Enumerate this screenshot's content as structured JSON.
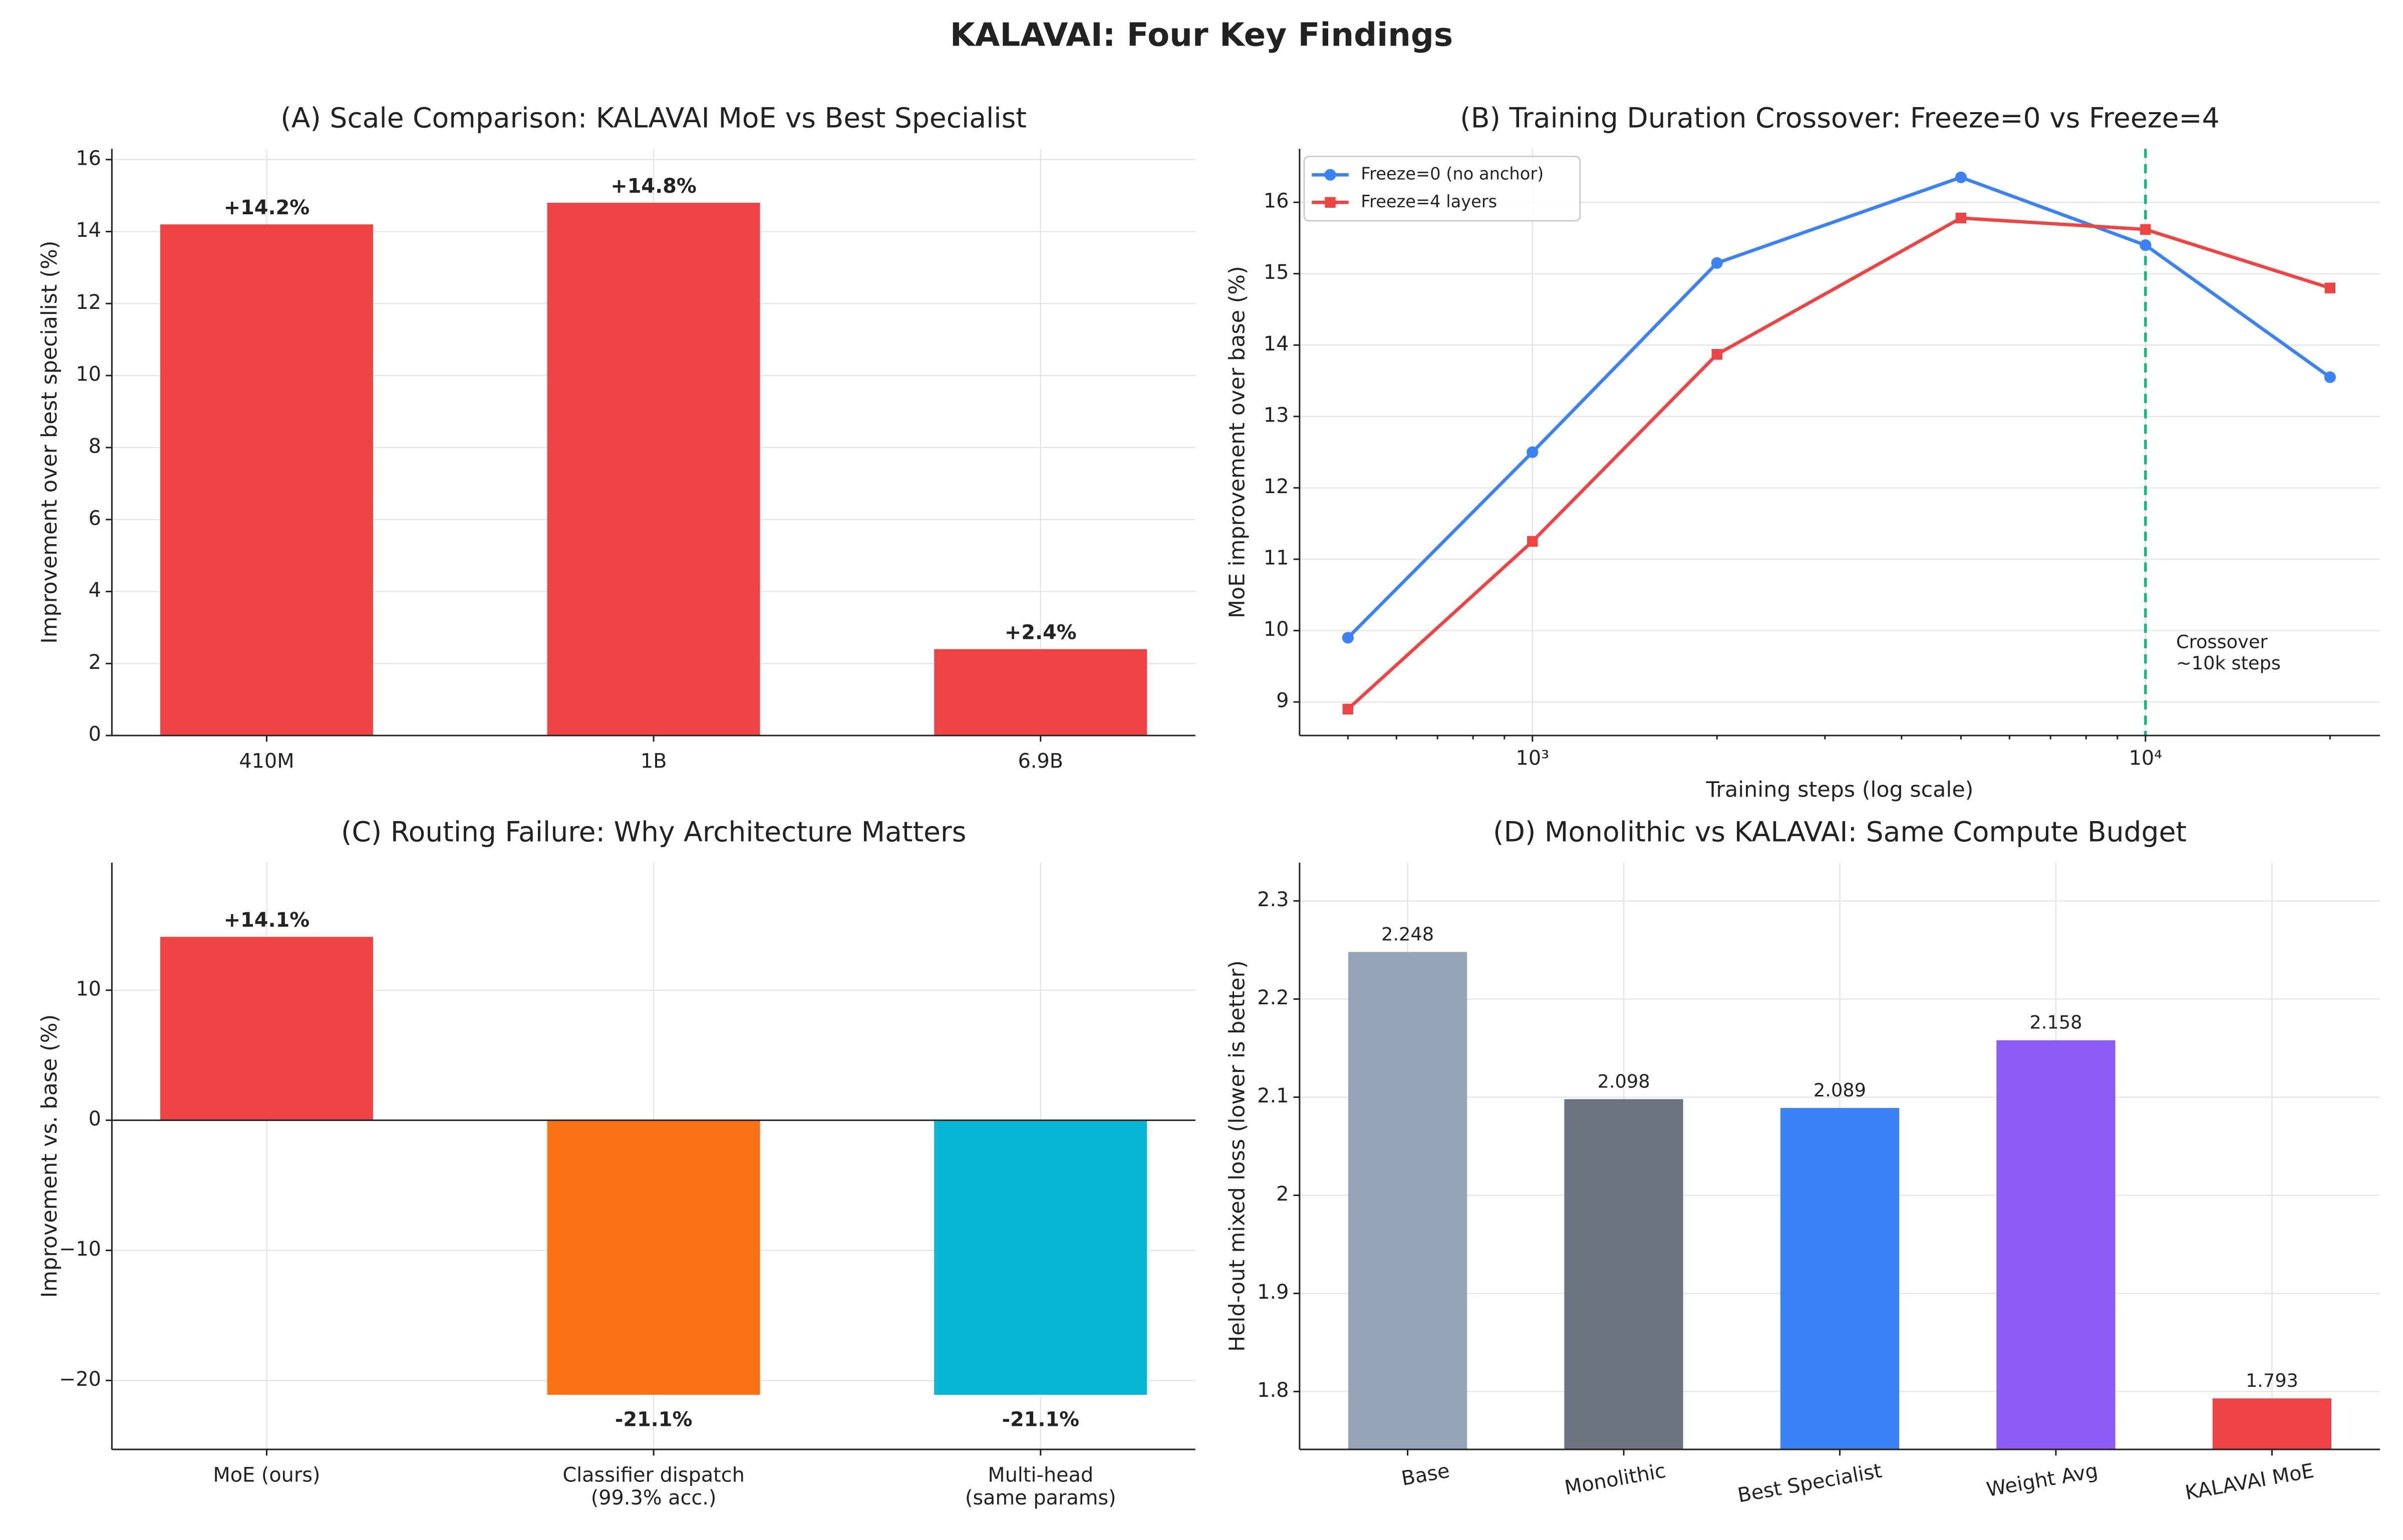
{
  "title": "KALAVAI: Four Key Findings",
  "chart_data": [
    {
      "type": "bar",
      "title": "(A)  Scale Comparison: KALAVAI MoE vs Best Specialist",
      "ylabel": "Improvement over best specialist (%)",
      "categories": [
        "410M",
        "1B",
        "6.9B"
      ],
      "values": [
        14.2,
        14.8,
        2.4
      ],
      "value_labels": [
        "+14.2%",
        "+14.8%",
        "+2.4%"
      ],
      "color": "#ef4444",
      "ylim": [
        0,
        16.3
      ],
      "yticks": [
        0,
        2,
        4,
        6,
        8,
        10,
        12,
        14,
        16
      ],
      "grid": true
    },
    {
      "type": "line",
      "title": "(B)  Training Duration Crossover: Freeze=0 vs Freeze=4",
      "xlabel": "Training steps (log scale)",
      "ylabel": "MoE improvement over base (%)",
      "x": [
        500,
        1000,
        2000,
        5000,
        10000,
        20000
      ],
      "xscale": "log",
      "series": [
        {
          "name": "Freeze=0 (no anchor)",
          "color": "#3b82f6",
          "marker": "circle",
          "values": [
            9.9,
            12.5,
            15.15,
            16.35,
            15.4,
            13.55
          ]
        },
        {
          "name": "Freeze=4 layers",
          "color": "#ef4444",
          "marker": "square",
          "values": [
            8.9,
            11.25,
            13.87,
            15.78,
            15.62,
            14.8
          ]
        }
      ],
      "xlim": [
        417,
        24130
      ],
      "xticks": [
        {
          "value": 1000,
          "label": "10³"
        },
        {
          "value": 10000,
          "label": "10⁴"
        }
      ],
      "ylim": [
        8.53,
        16.75
      ],
      "yticks": [
        9,
        10,
        11,
        12,
        13,
        14,
        15,
        16
      ],
      "grid": true,
      "legend": "upper-left",
      "annotation": {
        "x": 10000,
        "color": "#10b981",
        "text": [
          "Crossover",
          "~10k steps"
        ]
      }
    },
    {
      "type": "bar",
      "title": "(C)  Routing Failure: Why Architecture Matters",
      "ylabel": "Improvement vs. base (%)",
      "categories": [
        [
          "MoE (ours)"
        ],
        [
          "Classifier dispatch",
          "(99.3% acc.)"
        ],
        [
          "Multi-head",
          "(same params)"
        ]
      ],
      "values": [
        14.1,
        -21.1,
        -21.1
      ],
      "value_labels": [
        "+14.1%",
        "-21.1%",
        "-21.1%"
      ],
      "colors": [
        "#ef4444",
        "#f97316",
        "#06b6d4"
      ],
      "ylim": [
        -25.3,
        19.8
      ],
      "yticks": [
        {
          "value": -20,
          "label": "−20"
        },
        {
          "value": -10,
          "label": "−10"
        },
        0,
        10
      ],
      "grid": true
    },
    {
      "type": "bar",
      "title": "(D)  Monolithic vs KALAVAI: Same Compute Budget",
      "ylabel": "Held-out mixed loss (lower is better)",
      "categories": [
        [
          "Base"
        ],
        [
          "Monolithic"
        ],
        [
          "Best Specialist"
        ],
        [
          "Weight Avg"
        ],
        [
          "KALAVAI MoE"
        ]
      ],
      "values": [
        2.248,
        2.098,
        2.089,
        2.158,
        1.793
      ],
      "colors": [
        "#94a3b8",
        "#6b7280",
        "#3b82f6",
        "#8b5cf6",
        "#ef4444"
      ],
      "ylim": [
        1.741,
        2.339
      ],
      "yticks": [
        1.8,
        1.9,
        2.0,
        2.1,
        2.2,
        2.3
      ],
      "grid": true,
      "rotate_labels": true
    }
  ]
}
